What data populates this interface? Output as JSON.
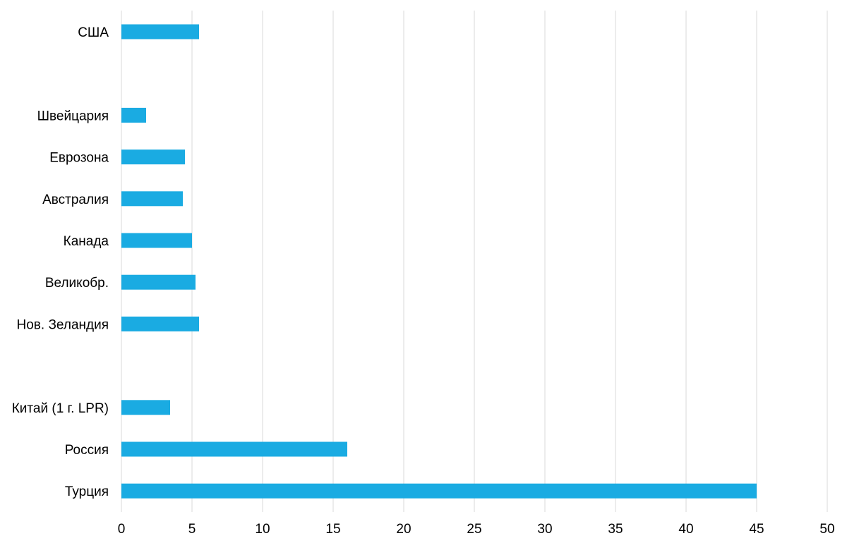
{
  "chart_data": {
    "type": "bar",
    "orientation": "horizontal",
    "title": "",
    "xlabel": "",
    "ylabel": "",
    "xlim": [
      0,
      50
    ],
    "x_ticks": [
      0,
      5,
      10,
      15,
      20,
      25,
      30,
      35,
      40,
      45,
      50
    ],
    "grid": "vertical",
    "legend": "none",
    "bar_color": "#1aabe2",
    "categories": [
      "США",
      "",
      "Швейцария",
      "Еврозона",
      "Австралия",
      "Канада",
      "Великобр.",
      "Нов. Зеландия",
      "",
      "Китай (1 г. LPR)",
      "Россия",
      "Турция"
    ],
    "values": [
      5.5,
      null,
      1.75,
      4.5,
      4.35,
      5.0,
      5.25,
      5.5,
      null,
      3.45,
      16.0,
      45.0
    ]
  }
}
